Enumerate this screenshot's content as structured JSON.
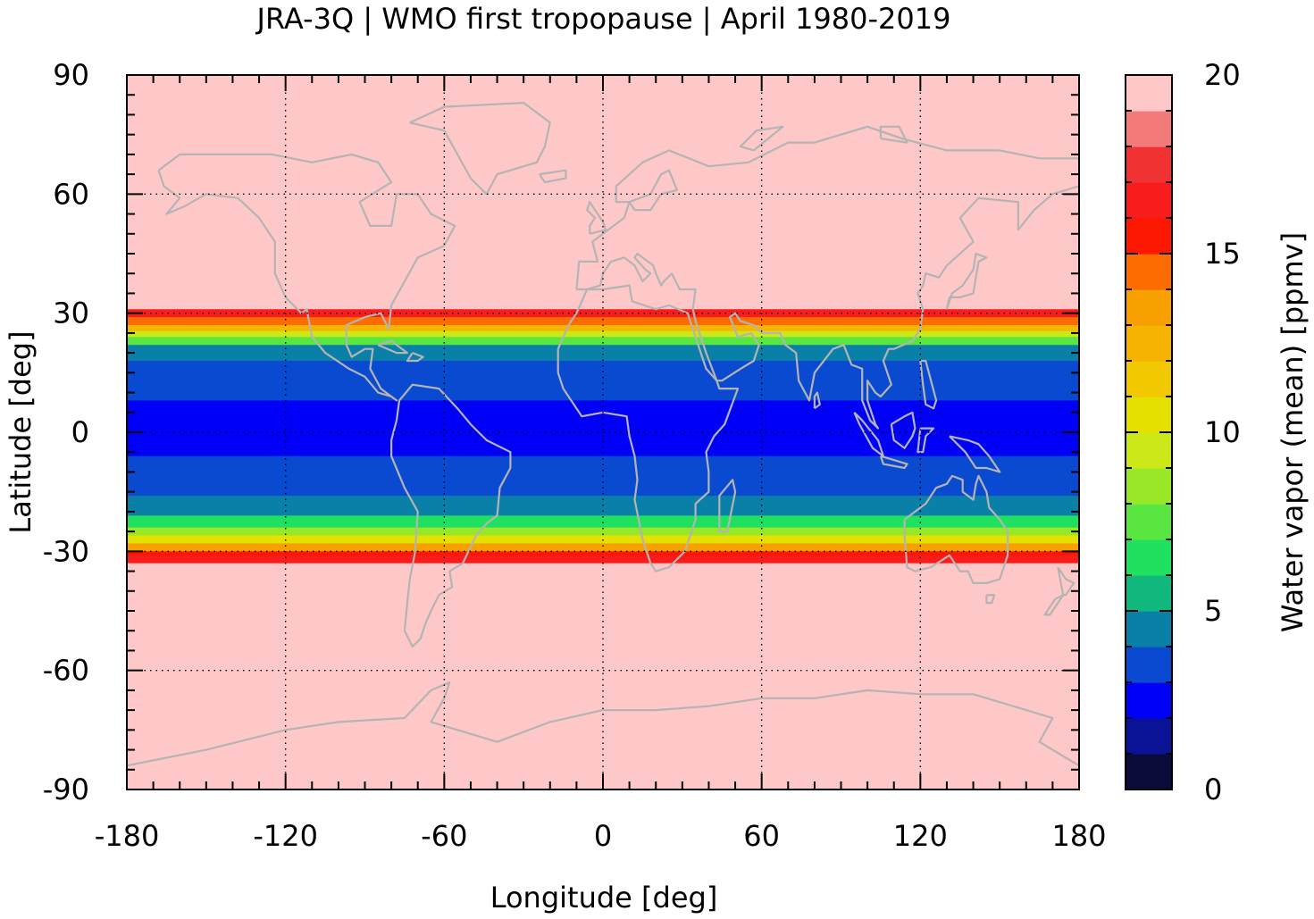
{
  "chart_data": {
    "type": "heatmap",
    "title": "JRA-3Q | WMO first tropopause | April 1980-2019",
    "xlabel": "Longitude [deg]",
    "ylabel": "Latitude [deg]",
    "xlim": [
      -180,
      180
    ],
    "ylim": [
      -90,
      90
    ],
    "xticks": [
      -180,
      -120,
      -60,
      0,
      60,
      120,
      180
    ],
    "xtick_labels": [
      "-180",
      "-120",
      "-60",
      "0",
      "60",
      "120",
      "180"
    ],
    "yticks": [
      90,
      60,
      30,
      0,
      -30,
      -60,
      -90
    ],
    "ytick_labels": [
      "90",
      "60",
      "30",
      "0",
      "-30",
      "-60",
      "-90"
    ],
    "grid": true,
    "colorbar": {
      "label": "Water vapor (mean) [ppmv]",
      "range": [
        0,
        20
      ],
      "ticks": [
        20,
        15,
        10,
        5,
        0
      ],
      "tick_labels": [
        "20",
        "15",
        "10",
        "5",
        "0"
      ],
      "levels": [
        {
          "from": 0,
          "to": 1,
          "color": "#0b0b3a"
        },
        {
          "from": 1,
          "to": 2,
          "color": "#0a1296"
        },
        {
          "from": 2,
          "to": 3,
          "color": "#0000f8"
        },
        {
          "from": 3,
          "to": 4,
          "color": "#0a4ad0"
        },
        {
          "from": 4,
          "to": 5,
          "color": "#0a7fa8"
        },
        {
          "from": 5,
          "to": 6,
          "color": "#10b87e"
        },
        {
          "from": 6,
          "to": 7,
          "color": "#20e060"
        },
        {
          "from": 7,
          "to": 8,
          "color": "#5ae640"
        },
        {
          "from": 8,
          "to": 9,
          "color": "#98e828"
        },
        {
          "from": 9,
          "to": 10,
          "color": "#cce818"
        },
        {
          "from": 10,
          "to": 11,
          "color": "#e4e000"
        },
        {
          "from": 11,
          "to": 12,
          "color": "#f2c800"
        },
        {
          "from": 12,
          "to": 13,
          "color": "#f6b400"
        },
        {
          "from": 13,
          "to": 14,
          "color": "#f8a000"
        },
        {
          "from": 14,
          "to": 15,
          "color": "#fc6c00"
        },
        {
          "from": 15,
          "to": 16,
          "color": "#fc1800"
        },
        {
          "from": 16,
          "to": 17,
          "color": "#f81c1c"
        },
        {
          "from": 17,
          "to": 18,
          "color": "#f03232"
        },
        {
          "from": 18,
          "to": 19,
          "color": "#f27a7a"
        },
        {
          "from": 19,
          "to": 20,
          "color": "#fec8c8"
        }
      ]
    },
    "bands": [
      {
        "lat_from": 90,
        "lat_to": 31,
        "value": 20
      },
      {
        "lat_from": 31,
        "lat_to": 29,
        "value": 16.5
      },
      {
        "lat_from": 29,
        "lat_to": 27,
        "value": 14
      },
      {
        "lat_from": 27,
        "lat_to": 25.5,
        "value": 12
      },
      {
        "lat_from": 25.5,
        "lat_to": 24,
        "value": 9.5
      },
      {
        "lat_from": 24,
        "lat_to": 22,
        "value": 7
      },
      {
        "lat_from": 22,
        "lat_to": 18,
        "value": 4.5
      },
      {
        "lat_from": 18,
        "lat_to": 8,
        "value": 3.5
      },
      {
        "lat_from": 8,
        "lat_to": -6,
        "value": 2.5
      },
      {
        "lat_from": -6,
        "lat_to": -16,
        "value": 3.5
      },
      {
        "lat_from": -16,
        "lat_to": -21,
        "value": 4.5
      },
      {
        "lat_from": -21,
        "lat_to": -24,
        "value": 6
      },
      {
        "lat_from": -24,
        "lat_to": -26,
        "value": 8
      },
      {
        "lat_from": -26,
        "lat_to": -28,
        "value": 10.5
      },
      {
        "lat_from": -28,
        "lat_to": -30,
        "value": 13
      },
      {
        "lat_from": -30,
        "lat_to": -31,
        "value": 15
      },
      {
        "lat_from": -31,
        "lat_to": -33,
        "value": 16.5
      },
      {
        "lat_from": -33,
        "lat_to": -90,
        "value": 20
      }
    ],
    "coastline_color": "#b4b4b4",
    "grid_color": "#000000"
  }
}
